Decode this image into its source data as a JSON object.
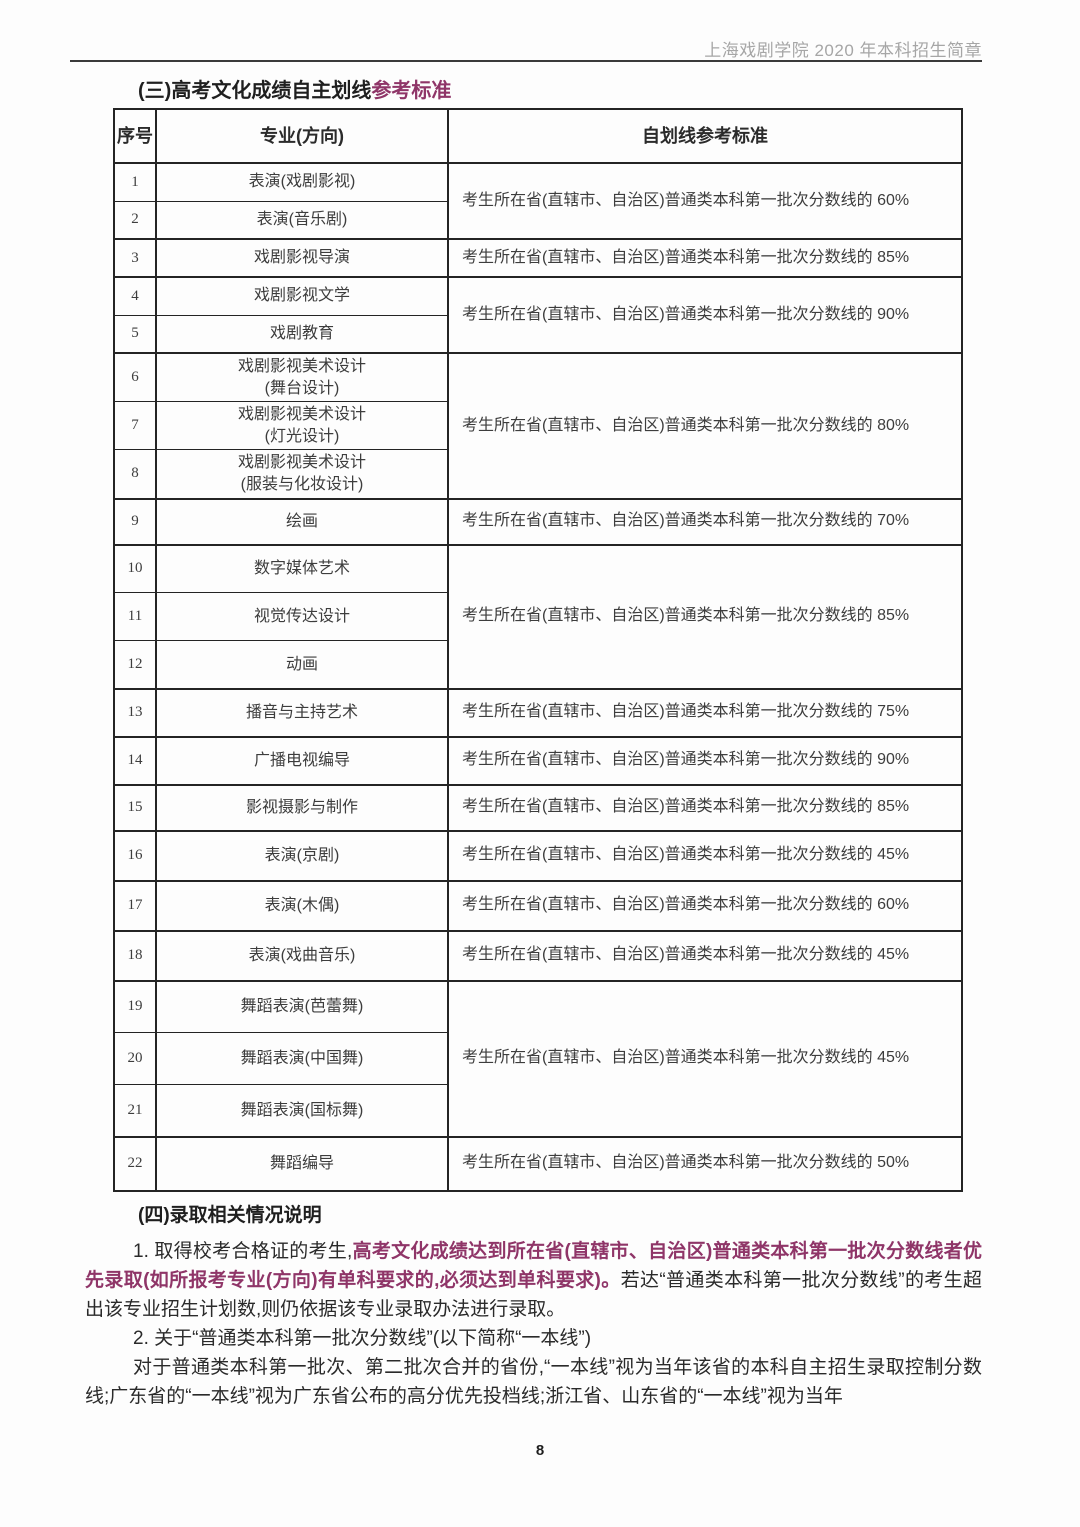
{
  "header": {
    "title": "上海戏剧学院 2020 年本科招生简章"
  },
  "section3": {
    "heading": "(三)高考文化成绩自主划线",
    "heading_accent": "参考标准"
  },
  "table": {
    "columns": [
      "序号",
      "专业(方向)",
      "自划线参考标准"
    ],
    "groups": [
      {
        "standard": "考生所在省(直辖市、自治区)普通类本科第一批次分数线的 60%",
        "rows": [
          {
            "no": "1",
            "major": "表演(戏剧影视)"
          },
          {
            "no": "2",
            "major": "表演(音乐剧)"
          }
        ]
      },
      {
        "standard": "考生所在省(直辖市、自治区)普通类本科第一批次分数线的 85%",
        "rows": [
          {
            "no": "3",
            "major": "戏剧影视导演"
          }
        ]
      },
      {
        "standard": "考生所在省(直辖市、自治区)普通类本科第一批次分数线的 90%",
        "rows": [
          {
            "no": "4",
            "major": "戏剧影视文学"
          },
          {
            "no": "5",
            "major": "戏剧教育"
          }
        ]
      },
      {
        "standard": "考生所在省(直辖市、自治区)普通类本科第一批次分数线的 80%",
        "rows": [
          {
            "no": "6",
            "major": "戏剧影视美术设计",
            "major2": "(舞台设计)"
          },
          {
            "no": "7",
            "major": "戏剧影视美术设计",
            "major2": "(灯光设计)"
          },
          {
            "no": "8",
            "major": "戏剧影视美术设计",
            "major2": "(服装与化妆设计)"
          }
        ]
      },
      {
        "standard": "考生所在省(直辖市、自治区)普通类本科第一批次分数线的 70%",
        "rows": [
          {
            "no": "9",
            "major": "绘画"
          }
        ]
      },
      {
        "standard": "考生所在省(直辖市、自治区)普通类本科第一批次分数线的 85%",
        "rows": [
          {
            "no": "10",
            "major": "数字媒体艺术"
          },
          {
            "no": "11",
            "major": "视觉传达设计"
          },
          {
            "no": "12",
            "major": "动画"
          }
        ]
      },
      {
        "standard": "考生所在省(直辖市、自治区)普通类本科第一批次分数线的 75%",
        "rows": [
          {
            "no": "13",
            "major": "播音与主持艺术"
          }
        ]
      },
      {
        "standard": "考生所在省(直辖市、自治区)普通类本科第一批次分数线的 90%",
        "rows": [
          {
            "no": "14",
            "major": "广播电视编导"
          }
        ]
      },
      {
        "standard": "考生所在省(直辖市、自治区)普通类本科第一批次分数线的 85%",
        "rows": [
          {
            "no": "15",
            "major": "影视摄影与制作"
          }
        ]
      },
      {
        "standard": "考生所在省(直辖市、自治区)普通类本科第一批次分数线的 45%",
        "rows": [
          {
            "no": "16",
            "major": "表演(京剧)"
          }
        ]
      },
      {
        "standard": "考生所在省(直辖市、自治区)普通类本科第一批次分数线的 60%",
        "rows": [
          {
            "no": "17",
            "major": "表演(木偶)"
          }
        ]
      },
      {
        "standard": "考生所在省(直辖市、自治区)普通类本科第一批次分数线的 45%",
        "rows": [
          {
            "no": "18",
            "major": "表演(戏曲音乐)"
          }
        ]
      },
      {
        "standard": "考生所在省(直辖市、自治区)普通类本科第一批次分数线的 45%",
        "rows": [
          {
            "no": "19",
            "major": "舞蹈表演(芭蕾舞)"
          },
          {
            "no": "20",
            "major": "舞蹈表演(中国舞)"
          },
          {
            "no": "21",
            "major": "舞蹈表演(国标舞)"
          }
        ]
      },
      {
        "standard": "考生所在省(直辖市、自治区)普通类本科第一批次分数线的 50%",
        "rows": [
          {
            "no": "22",
            "major": "舞蹈编导"
          }
        ]
      }
    ]
  },
  "section4": {
    "heading": "(四)录取相关情况说明",
    "para1_normal1": "1. 取得校考合格证的考生,",
    "para1_accent": "高考文化成绩达到所在省(直辖市、自治区)普通类本科第一批次分数线者优先录取(如所报考专业(方向)有单科要求的,必须达到单科要求)。",
    "para1_normal2": "若达“普通类本科第一批次分数线”的考生超出该专业招生计划数,则仍依据该专业录取办法进行录取。",
    "para2": "2. 关于“普通类本科第一批次分数线”(以下简称“一本线”)",
    "para3": "对于普通类本科第一批次、第二批次合并的省份,“一本线”视为当年该省的本科自主招生录取控制分数线;广东省的“一本线”视为广东省公布的高分优先投档线;浙江省、山东省的“一本线”视为当年"
  },
  "footer": {
    "page_number": "8"
  },
  "colors": {
    "accent": "#8f3568",
    "border": "#242424",
    "header_gray": "#a6a6a6",
    "rule": "#3a3a3a"
  }
}
